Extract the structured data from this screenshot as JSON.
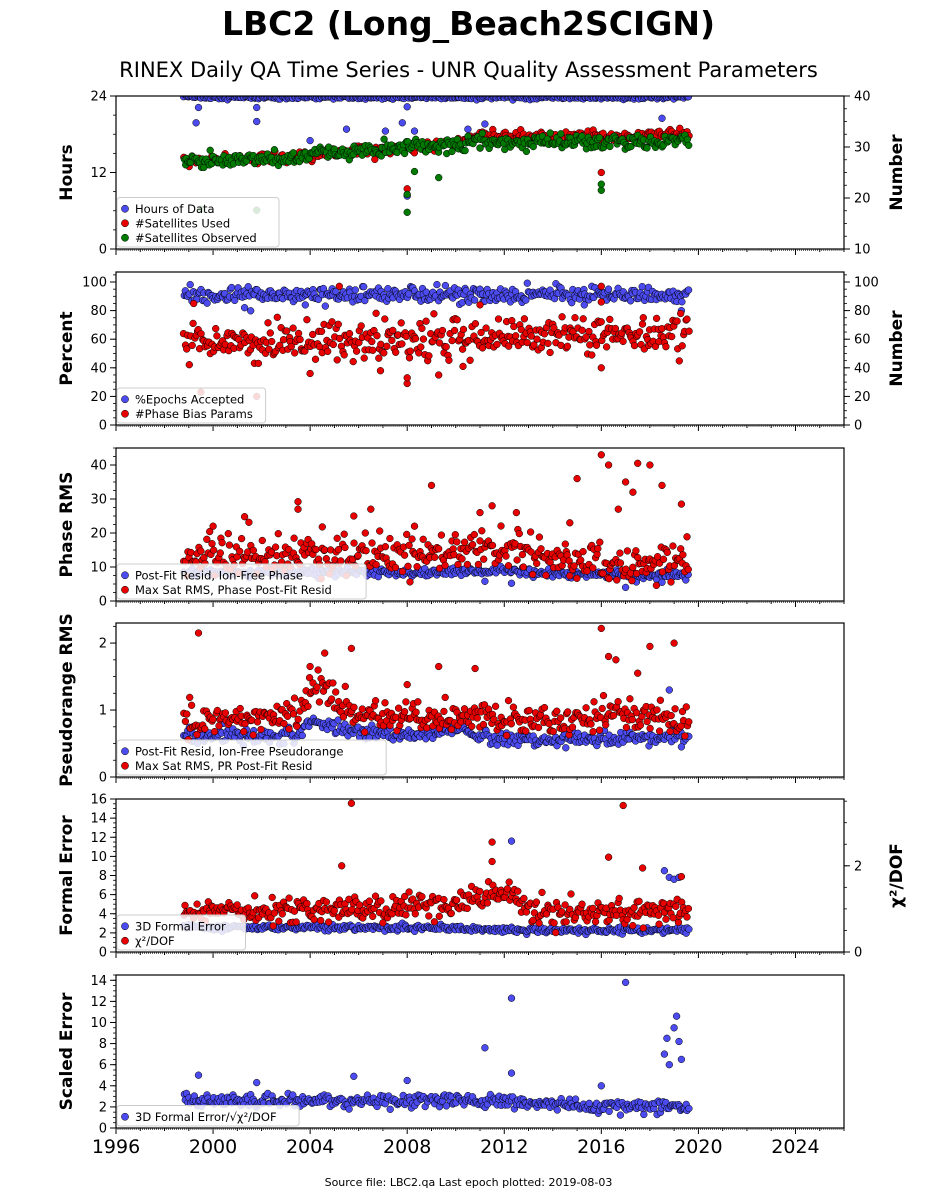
{
  "page": {
    "title": "LBC2 (Long_Beach2SCIGN)",
    "subtitle": "RINEX Daily QA Time Series - UNR Quality Assessment Parameters",
    "footer": "Source file: LBC2.qa Last epoch plotted: 2019-08-03"
  },
  "colors": {
    "blue": "#4b4bf0",
    "red": "#e80000",
    "green": "#007a00",
    "edge": "#000000"
  },
  "chart_data": [
    {
      "type": "scatter",
      "ylabel": "Hours",
      "y2label": "Number",
      "xlim": [
        1996,
        2026
      ],
      "ylim": [
        0,
        24
      ],
      "yticks": [
        0,
        12,
        24
      ],
      "y2lim": [
        10,
        40
      ],
      "y2ticks": [
        10,
        20,
        30,
        40
      ],
      "legend_position": "bottom-left",
      "series": [
        {
          "name": "Hours of Data",
          "color": "#4b4bf0",
          "axis": "left",
          "x_range": [
            1998.8,
            2019.6
          ],
          "baseline": 23.8,
          "noise": 0.15,
          "outliers": [
            [
              1999.4,
              22.2
            ],
            [
              1999.3,
              19.8
            ],
            [
              2001.8,
              22.2
            ],
            [
              2001.8,
              20.0
            ],
            [
              2004.0,
              17.0
            ],
            [
              2005.5,
              18.8
            ],
            [
              2007.1,
              18.5
            ],
            [
              2007.8,
              19.8
            ],
            [
              2008.0,
              8.3
            ],
            [
              2008.0,
              22.3
            ],
            [
              2008.3,
              18.5
            ],
            [
              2010.5,
              18.8
            ],
            [
              2011.2,
              19.6
            ],
            [
              2016.0,
              18.0
            ],
            [
              2018.5,
              20.5
            ]
          ]
        },
        {
          "name": "#Satellites Used",
          "color": "#e80000",
          "axis": "right",
          "x_range": [
            1998.8,
            2019.6
          ],
          "baseline": [
            [
              1998.8,
              27.3
            ],
            [
              2003.0,
              27.8
            ],
            [
              2004.5,
              28.6
            ],
            [
              2007.5,
              29.5
            ],
            [
              2010.0,
              31.0
            ],
            [
              2011.0,
              32.2
            ],
            [
              2015.0,
              32.0
            ],
            [
              2019.6,
              32.4
            ]
          ],
          "noise": 0.5,
          "outliers": [
            [
              2008.0,
              21.8
            ],
            [
              2016.0,
              25.0
            ]
          ]
        },
        {
          "name": "#Satellites Observed",
          "color": "#007a00",
          "axis": "right",
          "x_range": [
            1998.8,
            2019.6
          ],
          "baseline": [
            [
              1998.8,
              27.3
            ],
            [
              2003.0,
              27.8
            ],
            [
              2004.5,
              28.6
            ],
            [
              2007.5,
              29.5
            ],
            [
              2010.0,
              30.4
            ],
            [
              2011.0,
              31.0
            ],
            [
              2015.0,
              31.0
            ],
            [
              2019.6,
              30.9
            ]
          ],
          "noise": 0.7,
          "outliers": [
            [
              1999.5,
              17.8
            ],
            [
              2001.8,
              17.6
            ],
            [
              2008.0,
              17.2
            ],
            [
              2008.0,
              20.7
            ],
            [
              2008.3,
              25.2
            ],
            [
              2009.3,
              24.0
            ],
            [
              2011.0,
              29.8
            ],
            [
              2016.0,
              21.5
            ],
            [
              2016.0,
              22.7
            ]
          ]
        }
      ]
    },
    {
      "type": "scatter",
      "ylabel": "Percent",
      "y2label": "Number",
      "xlim": [
        1996,
        2026
      ],
      "ylim": [
        0,
        107
      ],
      "yticks": [
        0,
        20,
        40,
        60,
        80,
        100
      ],
      "y2lim": [
        0,
        107
      ],
      "y2ticks": [
        0,
        20,
        40,
        60,
        80,
        100
      ],
      "legend_position": "bottom-left",
      "series": [
        {
          "name": "%Epochs Accepted",
          "color": "#4b4bf0",
          "axis": "left",
          "x_range": [
            1998.8,
            2019.6
          ],
          "baseline": 91,
          "noise": 2.5,
          "outliers": [
            [
              2001.3,
              82
            ],
            [
              2003.8,
              84
            ],
            [
              2015.3,
              84
            ],
            [
              2019.3,
              80
            ]
          ]
        },
        {
          "name": "#Phase Bias Params",
          "color": "#e80000",
          "axis": "right",
          "x_range": [
            1998.8,
            2019.6
          ],
          "baseline": [
            [
              1998.8,
              58
            ],
            [
              2009.0,
              59
            ],
            [
              2012.0,
              63
            ],
            [
              2019.6,
              63
            ]
          ],
          "noise": 7,
          "outliers": [
            [
              1999.2,
              85
            ],
            [
              1999.5,
              23
            ],
            [
              2001.8,
              20
            ],
            [
              2004.0,
              36
            ],
            [
              2005.2,
              97
            ],
            [
              2006.9,
              38
            ],
            [
              2008.0,
              29
            ],
            [
              2008.0,
              33
            ],
            [
              2009.3,
              35
            ],
            [
              2010.3,
              41
            ],
            [
              2011.0,
              84
            ],
            [
              2016.0,
              40
            ],
            [
              2016.0,
              97
            ],
            [
              2016.0,
              86
            ]
          ]
        }
      ]
    },
    {
      "type": "scatter",
      "ylabel": "Phase RMS",
      "xlim": [
        1996,
        2026
      ],
      "ylim": [
        0,
        45
      ],
      "yticks": [
        0,
        10,
        20,
        30,
        40
      ],
      "legend_position": "bottom-left",
      "series": [
        {
          "name": "Post-Fit Resid, Ion-Free Phase",
          "color": "#4b4bf0",
          "axis": "left",
          "x_range": [
            1998.8,
            2019.6
          ],
          "baseline": [
            [
              1998.8,
              8.5
            ],
            [
              2010.0,
              8.5
            ],
            [
              2012.0,
              9.0
            ],
            [
              2014.0,
              8.0
            ],
            [
              2019.6,
              7.5
            ]
          ],
          "noise": 0.6,
          "outliers": [
            [
              2011.2,
              5.8
            ],
            [
              2012.3,
              5.2
            ],
            [
              2017.0,
              4.0
            ],
            [
              2018.5,
              5.5
            ]
          ]
        },
        {
          "name": "Max Sat RMS, Phase Post-Fit Resid",
          "color": "#e80000",
          "axis": "left",
          "x_range": [
            1998.8,
            2019.6
          ],
          "baseline": [
            [
              1998.8,
              12.5
            ],
            [
              2001.0,
              13.0
            ],
            [
              2003.0,
              14.0
            ],
            [
              2007.0,
              13.5
            ],
            [
              2010.0,
              14.0
            ],
            [
              2012.0,
              16.0
            ],
            [
              2013.5,
              13.0
            ],
            [
              2016.0,
              11.0
            ],
            [
              2019.6,
              11.5
            ]
          ],
          "noise": 2.8,
          "outliers": [
            [
              2000.0,
              22.0
            ],
            [
              2001.3,
              24.8
            ],
            [
              2003.5,
              29.2
            ],
            [
              2003.5,
              27.0
            ],
            [
              2004.5,
              21.8
            ],
            [
              2005.8,
              25.0
            ],
            [
              2006.5,
              27.0
            ],
            [
              2008.3,
              22.0
            ],
            [
              2009.0,
              34.0
            ],
            [
              2011.0,
              26.0
            ],
            [
              2011.5,
              28.0
            ],
            [
              2012.5,
              26.0
            ],
            [
              2014.7,
              23.0
            ],
            [
              2015.0,
              36.0
            ],
            [
              2016.0,
              43.0
            ],
            [
              2016.3,
              40.0
            ],
            [
              2016.7,
              27.0
            ],
            [
              2017.0,
              35.0
            ],
            [
              2017.3,
              32.0
            ],
            [
              2017.5,
              40.5
            ],
            [
              2018.0,
              40.0
            ],
            [
              2018.5,
              34.0
            ],
            [
              2019.3,
              28.5
            ]
          ]
        }
      ]
    },
    {
      "type": "scatter",
      "ylabel": "Pseudorange RMS",
      "xlim": [
        1996,
        2026
      ],
      "ylim": [
        0,
        2.3
      ],
      "yticks": [
        0,
        1,
        2
      ],
      "legend_position": "bottom-left",
      "series": [
        {
          "name": "Post-Fit Resid, Ion-Free Pseudorange",
          "color": "#4b4bf0",
          "axis": "left",
          "x_range": [
            1998.8,
            2019.6
          ],
          "baseline": [
            [
              1998.8,
              0.62
            ],
            [
              2003.5,
              0.62
            ],
            [
              2004.0,
              0.85
            ],
            [
              2005.0,
              0.72
            ],
            [
              2008.0,
              0.62
            ],
            [
              2010.5,
              0.7
            ],
            [
              2011.5,
              0.58
            ],
            [
              2014.0,
              0.55
            ],
            [
              2016.0,
              0.57
            ],
            [
              2019.6,
              0.6
            ]
          ],
          "noise": 0.05,
          "outliers": [
            [
              2018.8,
              1.3
            ],
            [
              2019.3,
              0.45
            ]
          ]
        },
        {
          "name": "Max Sat RMS, PR Post-Fit Resid",
          "color": "#e80000",
          "axis": "left",
          "x_range": [
            1998.8,
            2019.6
          ],
          "baseline": [
            [
              1998.8,
              0.85
            ],
            [
              2003.5,
              0.9
            ],
            [
              2004.0,
              1.25
            ],
            [
              2004.6,
              1.45
            ],
            [
              2005.2,
              1.0
            ],
            [
              2008.0,
              0.9
            ],
            [
              2010.0,
              0.9
            ],
            [
              2011.0,
              1.0
            ],
            [
              2012.0,
              0.85
            ],
            [
              2014.0,
              0.85
            ],
            [
              2016.0,
              0.95
            ],
            [
              2019.6,
              0.85
            ]
          ],
          "noise": 0.12,
          "outliers": [
            [
              1999.4,
              2.15
            ],
            [
              2004.0,
              1.65
            ],
            [
              2004.6,
              1.85
            ],
            [
              2005.7,
              1.92
            ],
            [
              2008.0,
              1.38
            ],
            [
              2009.3,
              1.65
            ],
            [
              2010.8,
              1.62
            ],
            [
              2016.0,
              2.22
            ],
            [
              2016.3,
              1.8
            ],
            [
              2016.6,
              1.75
            ],
            [
              2017.5,
              1.55
            ],
            [
              2018.0,
              1.95
            ],
            [
              2019.0,
              2.0
            ]
          ]
        }
      ]
    },
    {
      "type": "scatter",
      "ylabel": "Formal Error",
      "y2label": "χ²/DOF",
      "xlim": [
        1996,
        2026
      ],
      "ylim": [
        0,
        16
      ],
      "yticks": [
        0,
        2,
        4,
        6,
        8,
        10,
        12,
        14,
        16
      ],
      "y2lim": [
        0,
        3.55
      ],
      "y2ticks": [
        0,
        2
      ],
      "legend_position": "bottom-left",
      "series": [
        {
          "name": "3D Formal Error",
          "color": "#4b4bf0",
          "axis": "left",
          "x_range": [
            1998.8,
            2019.6
          ],
          "baseline": [
            [
              1998.8,
              2.6
            ],
            [
              2010.0,
              2.5
            ],
            [
              2012.0,
              2.3
            ],
            [
              2019.6,
              2.3
            ]
          ],
          "noise": 0.15,
          "outliers": [
            [
              2018.6,
              8.5
            ],
            [
              2018.8,
              7.8
            ],
            [
              2019.0,
              7.6
            ],
            [
              2019.2,
              7.8
            ],
            [
              2012.3,
              11.6
            ]
          ]
        },
        {
          "name": "χ²/DOF",
          "color": "#e80000",
          "axis": "right",
          "x_range": [
            1998.8,
            2019.6
          ],
          "baseline": [
            [
              1998.8,
              0.95
            ],
            [
              2008.0,
              0.98
            ],
            [
              2010.0,
              1.15
            ],
            [
              2011.0,
              1.25
            ],
            [
              2012.5,
              1.25
            ],
            [
              2013.2,
              0.95
            ],
            [
              2019.6,
              0.92
            ]
          ],
          "noise": 0.15,
          "outliers": [
            [
              2005.7,
              3.45
            ],
            [
              2005.3,
              2.0
            ],
            [
              2011.5,
              2.55
            ],
            [
              2011.5,
              2.1
            ],
            [
              2016.9,
              3.4
            ],
            [
              2016.3,
              2.2
            ],
            [
              2017.7,
              1.95
            ],
            [
              2019.3,
              1.75
            ]
          ]
        }
      ]
    },
    {
      "type": "scatter",
      "ylabel": "Scaled Error",
      "xlim": [
        1996,
        2026
      ],
      "ylim": [
        0,
        14.5
      ],
      "yticks": [
        0,
        2,
        4,
        6,
        8,
        10,
        12,
        14
      ],
      "xticks": [
        1996,
        2000,
        2004,
        2008,
        2012,
        2016,
        2020,
        2024
      ],
      "legend_position": "bottom-left",
      "series": [
        {
          "name": "3D Formal Error/√χ²/DOF",
          "color": "#4b4bf0",
          "axis": "left",
          "x_range": [
            1998.8,
            2019.6
          ],
          "baseline": [
            [
              1998.8,
              2.6
            ],
            [
              2010.0,
              2.6
            ],
            [
              2012.0,
              2.5
            ],
            [
              2016.0,
              2.0
            ],
            [
              2019.6,
              2.0
            ]
          ],
          "noise": 0.3,
          "outliers": [
            [
              1999.4,
              5.0
            ],
            [
              2001.8,
              4.3
            ],
            [
              2005.8,
              4.9
            ],
            [
              2008.0,
              4.5
            ],
            [
              2011.2,
              7.6
            ],
            [
              2012.3,
              12.3
            ],
            [
              2012.3,
              5.2
            ],
            [
              2017.0,
              13.8
            ],
            [
              2018.6,
              7.0
            ],
            [
              2018.7,
              8.5
            ],
            [
              2018.8,
              6.0
            ],
            [
              2019.0,
              9.5
            ],
            [
              2019.1,
              10.6
            ],
            [
              2019.2,
              8.2
            ],
            [
              2019.3,
              6.5
            ],
            [
              2016.0,
              4.0
            ]
          ]
        }
      ]
    }
  ]
}
